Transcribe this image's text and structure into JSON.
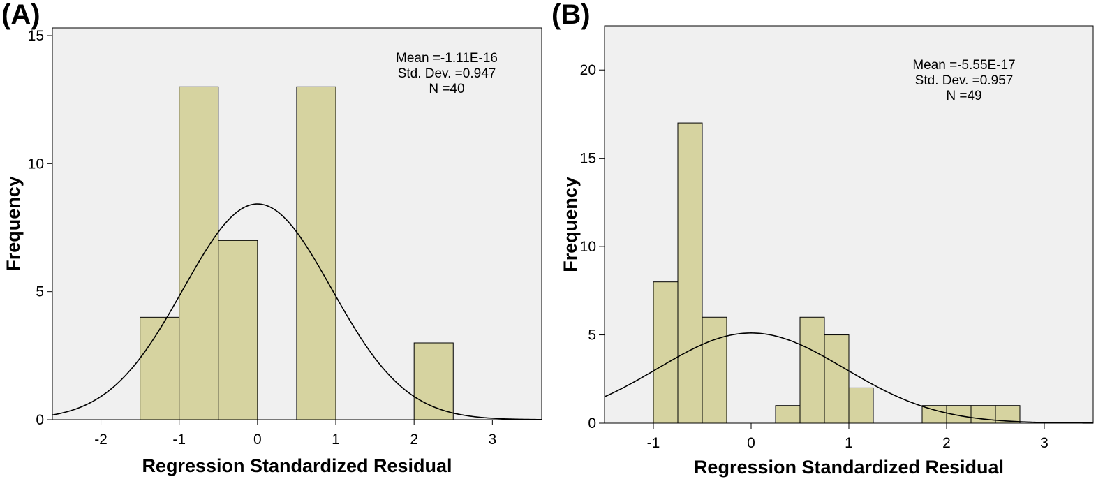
{
  "colors": {
    "bar_fill": "#d6d3a0",
    "plot_background": "#f0f0f0",
    "curve": "#000000"
  },
  "chart_data": [
    {
      "type": "bar",
      "panel_label": "(A)",
      "xlabel": "Regression Standardized Residual",
      "ylabel": "Frequency",
      "xlim": [
        -2.62,
        3.63
      ],
      "ylim": [
        0,
        15.3
      ],
      "xticks": [
        -2,
        -1,
        0,
        1,
        2,
        3
      ],
      "yticks": [
        0,
        5,
        10,
        15
      ],
      "bin_width": 0.5,
      "bins": [
        {
          "x0": -1.5,
          "x1": -1.0,
          "count": 4
        },
        {
          "x0": -1.0,
          "x1": -0.5,
          "count": 13
        },
        {
          "x0": -0.5,
          "x1": 0.0,
          "count": 7
        },
        {
          "x0": 0.5,
          "x1": 1.0,
          "count": 13
        },
        {
          "x0": 2.0,
          "x1": 2.5,
          "count": 3
        }
      ],
      "normal_curve": {
        "mean": 0,
        "sd": 0.947,
        "n": 40
      },
      "stats": [
        "Mean =-1.11E-16",
        "Std. Dev. =0.947",
        "N =40"
      ],
      "grid": false,
      "legend": "none"
    },
    {
      "type": "bar",
      "panel_label": "(B)",
      "xlabel": "Regression Standardized Residual",
      "ylabel": "Frequency",
      "xlim": [
        -1.5,
        3.5
      ],
      "ylim": [
        0,
        22.5
      ],
      "xticks": [
        -1,
        0,
        1,
        2,
        3
      ],
      "yticks": [
        0,
        5,
        10,
        15,
        20
      ],
      "bin_width": 0.25,
      "bins": [
        {
          "x0": -1.0,
          "x1": -0.75,
          "count": 8
        },
        {
          "x0": -0.75,
          "x1": -0.5,
          "count": 17
        },
        {
          "x0": -0.5,
          "x1": -0.25,
          "count": 6
        },
        {
          "x0": 0.25,
          "x1": 0.5,
          "count": 1
        },
        {
          "x0": 0.5,
          "x1": 0.75,
          "count": 6
        },
        {
          "x0": 0.75,
          "x1": 1.0,
          "count": 5
        },
        {
          "x0": 1.0,
          "x1": 1.25,
          "count": 2
        },
        {
          "x0": 1.75,
          "x1": 2.0,
          "count": 1
        },
        {
          "x0": 2.0,
          "x1": 2.25,
          "count": 1
        },
        {
          "x0": 2.25,
          "x1": 2.5,
          "count": 1
        },
        {
          "x0": 2.5,
          "x1": 2.75,
          "count": 1
        }
      ],
      "normal_curve": {
        "mean": 0,
        "sd": 0.957,
        "n": 49
      },
      "stats": [
        "Mean =-5.55E-17",
        "Std. Dev. =0.957",
        "N =49"
      ],
      "grid": false,
      "legend": "none"
    }
  ]
}
